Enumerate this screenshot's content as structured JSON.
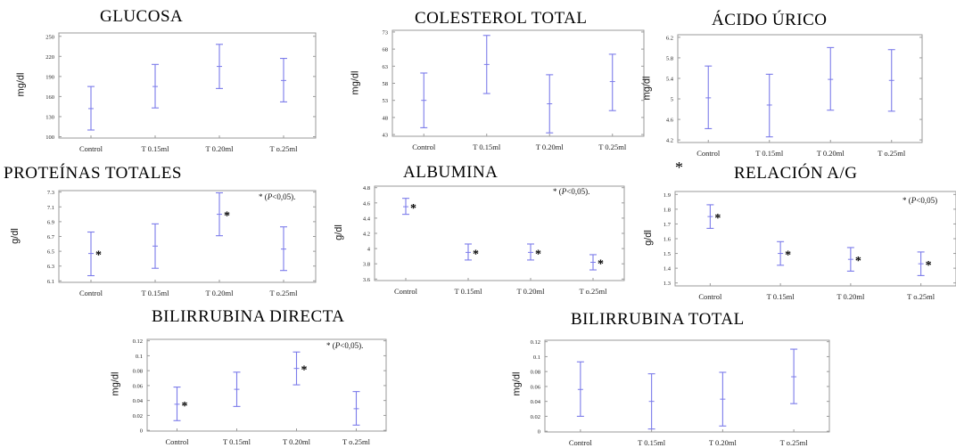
{
  "stray_mark": "*",
  "chart_data": [
    {
      "id": "glucosa",
      "type": "error_bar",
      "title": "GLUCOSA",
      "ylabel": "mg/dl",
      "categories": [
        "Control",
        "T 0.15ml",
        "T 0.20ml",
        "T o.25ml"
      ],
      "ytick_labels": [
        "100",
        "130",
        "160",
        "190",
        "220",
        "250"
      ],
      "ylim": [
        98,
        255
      ],
      "mean": [
        142,
        175,
        205,
        184
      ],
      "lower": [
        110,
        143,
        172,
        152
      ],
      "upper": [
        175,
        208,
        238,
        217
      ],
      "asterisks": [
        false,
        false,
        false,
        false
      ],
      "significance_note": "",
      "color": "#7b7bea"
    },
    {
      "id": "colesterol",
      "type": "error_bar",
      "title": "COLESTEROL TOTAL",
      "ylabel": "mg/dl",
      "categories": [
        "Control",
        "T 0.15ml",
        "T 0.20ml",
        "T 0.25ml"
      ],
      "ytick_labels": [
        "43",
        "48",
        "53",
        "58",
        "63",
        "68",
        "73"
      ],
      "ylim": [
        42.5,
        73.5
      ],
      "mean": [
        53,
        63.5,
        52,
        58.5
      ],
      "lower": [
        45,
        55,
        43.5,
        50
      ],
      "upper": [
        61,
        72,
        60.5,
        66.5
      ],
      "asterisks": [
        false,
        false,
        false,
        false
      ],
      "significance_note": "",
      "color": "#7b7bea"
    },
    {
      "id": "acido_urico",
      "type": "error_bar",
      "title": "ÁCIDO ÚRICO",
      "ylabel": "mg/dl",
      "categories": [
        "Control",
        "T 0.15ml",
        "T 0.20ml",
        "T o.25ml"
      ],
      "ytick_labels": [
        "4.2",
        "4.6",
        "5",
        "5.4",
        "5.8",
        "6.2"
      ],
      "ylim": [
        4.15,
        6.25
      ],
      "mean": [
        5.02,
        4.88,
        5.38,
        5.36
      ],
      "lower": [
        4.42,
        4.26,
        4.78,
        4.76
      ],
      "upper": [
        5.64,
        5.48,
        6.0,
        5.96
      ],
      "asterisks": [
        false,
        false,
        false,
        false
      ],
      "significance_note": "",
      "color": "#7b7bea"
    },
    {
      "id": "proteinas",
      "type": "error_bar",
      "title": "PROTEÍNAS TOTALES",
      "ylabel": "g/dl",
      "categories": [
        "Control",
        "T 0.15ml",
        "T 0.20ml",
        "T o.25ml"
      ],
      "ytick_labels": [
        "6.1",
        "6.3",
        "6.5",
        "6.7",
        "6.9",
        "7.1",
        "7.3"
      ],
      "ylim": [
        6.08,
        7.32
      ],
      "mean": [
        6.47,
        6.57,
        7.0,
        6.53
      ],
      "lower": [
        6.17,
        6.27,
        6.71,
        6.24
      ],
      "upper": [
        6.76,
        6.87,
        7.29,
        6.83
      ],
      "asterisks": [
        true,
        false,
        true,
        false
      ],
      "significance_note": "* (P<0,05).",
      "color": "#7b7bea"
    },
    {
      "id": "albumina",
      "type": "error_bar",
      "title": "ALBUMINA",
      "ylabel": "g/dl",
      "categories": [
        "Control",
        "T 0.15ml",
        "T 0.20ml",
        "T o.25ml"
      ],
      "ytick_labels": [
        "3.6",
        "3.8",
        "4",
        "4.2",
        "4.4",
        "4.6",
        "4.8"
      ],
      "ylim": [
        3.58,
        4.82
      ],
      "mean": [
        4.55,
        3.95,
        3.95,
        3.82
      ],
      "lower": [
        4.45,
        3.85,
        3.85,
        3.72
      ],
      "upper": [
        4.66,
        4.06,
        4.06,
        3.92
      ],
      "asterisks": [
        true,
        true,
        true,
        true
      ],
      "significance_note": "* (P<0,05).",
      "color": "#7b7bea"
    },
    {
      "id": "relacion",
      "type": "error_bar",
      "title": "RELACIÓN A/G",
      "ylabel": "g/dl",
      "categories": [
        "Control",
        "T 0.15ml",
        "T 0.20ml",
        "T o.25ml"
      ],
      "ytick_labels": [
        "1.3",
        "1.4",
        "1.5",
        "1.6",
        "1.7",
        "1.8",
        "1.9"
      ],
      "ylim": [
        1.28,
        1.92
      ],
      "mean": [
        1.75,
        1.5,
        1.46,
        1.43
      ],
      "lower": [
        1.67,
        1.42,
        1.38,
        1.35
      ],
      "upper": [
        1.83,
        1.58,
        1.54,
        1.51
      ],
      "asterisks": [
        true,
        true,
        true,
        true
      ],
      "significance_note": "* (P<0,05)",
      "color": "#7b7bea"
    },
    {
      "id": "bil_directa",
      "type": "error_bar",
      "title": "BILIRRUBINA DIRECTA",
      "ylabel": "mg/dl",
      "categories": [
        "Control",
        "T 0.15ml",
        "T 0.20ml",
        "T o.25ml"
      ],
      "ytick_labels": [
        "0",
        "0.02",
        "0.04",
        "0.06",
        "0.08",
        "0.1",
        "0.12"
      ],
      "ylim": [
        -0.001,
        0.122
      ],
      "mean": [
        0.035,
        0.055,
        0.083,
        0.029
      ],
      "lower": [
        0.013,
        0.032,
        0.061,
        0.007
      ],
      "upper": [
        0.058,
        0.078,
        0.105,
        0.052
      ],
      "asterisks": [
        true,
        false,
        true,
        false
      ],
      "significance_note": "* (P<0,05).",
      "color": "#7b7bea"
    },
    {
      "id": "bil_total",
      "type": "error_bar",
      "title": "BILIRRUBINA TOTAL",
      "ylabel": "mg/dl",
      "categories": [
        "Control",
        "T 0.15ml",
        "T 0.20ml",
        "T o.25ml"
      ],
      "ytick_labels": [
        "0",
        "0.02",
        "0.04",
        "0.06",
        "0.08",
        "0.1",
        "0.12"
      ],
      "ylim": [
        -0.001,
        0.122
      ],
      "mean": [
        0.056,
        0.04,
        0.043,
        0.073
      ],
      "lower": [
        0.02,
        0.003,
        0.007,
        0.037
      ],
      "upper": [
        0.093,
        0.077,
        0.079,
        0.11
      ],
      "asterisks": [
        false,
        false,
        false,
        false
      ],
      "significance_note": "",
      "color": "#7b7bea"
    }
  ]
}
